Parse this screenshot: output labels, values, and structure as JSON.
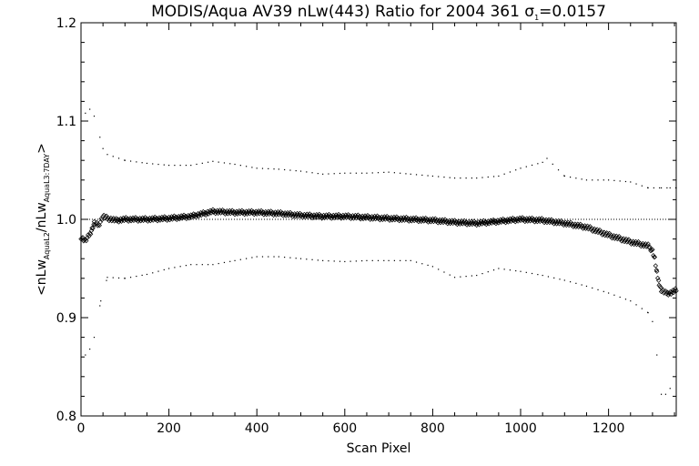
{
  "chart_data": {
    "type": "scatter",
    "title": "MODIS/Aqua AV39 nLw(443) Ratio for 2004 361 σ",
    "title_sigma_subscript": "1",
    "title_sigma_value": "=0.0157",
    "xlabel": "Scan Pixel",
    "ylabel_parts": {
      "open": "<",
      "num": "nLw",
      "num_sub": "AquaL2",
      "slash": "/",
      "den": "nLw",
      "den_sub": "AquaL3:7DAY",
      "close": ">"
    },
    "xlim": [
      0,
      1354
    ],
    "ylim": [
      0.8,
      1.2
    ],
    "x_ticks": [
      0,
      200,
      400,
      600,
      800,
      1000,
      1200
    ],
    "y_ticks": [
      0.8,
      0.9,
      1.0,
      1.1,
      1.2
    ],
    "y_tick_labels": [
      "0.8",
      "0.9",
      "1.0",
      "1.1",
      "1.2"
    ],
    "reference_line": 1.0,
    "grid": false,
    "series": [
      {
        "role": "mean ratio",
        "marker": "diamond",
        "points": [
          [
            0,
            0.982
          ],
          [
            10,
            0.978
          ],
          [
            20,
            0.985
          ],
          [
            25,
            0.99
          ],
          [
            30,
            0.996
          ],
          [
            40,
            0.994
          ],
          [
            50,
            1.003
          ],
          [
            60,
            1.001
          ],
          [
            80,
            0.999
          ],
          [
            100,
            1.0
          ],
          [
            120,
            1.0
          ],
          [
            150,
            1.0
          ],
          [
            200,
            1.001
          ],
          [
            250,
            1.003
          ],
          [
            300,
            1.008
          ],
          [
            350,
            1.007
          ],
          [
            400,
            1.007
          ],
          [
            450,
            1.006
          ],
          [
            500,
            1.004
          ],
          [
            550,
            1.003
          ],
          [
            600,
            1.003
          ],
          [
            650,
            1.002
          ],
          [
            700,
            1.001
          ],
          [
            750,
            1.0
          ],
          [
            800,
            0.999
          ],
          [
            850,
            0.997
          ],
          [
            900,
            0.996
          ],
          [
            950,
            0.998
          ],
          [
            1000,
            1.0
          ],
          [
            1050,
            0.999
          ],
          [
            1100,
            0.996
          ],
          [
            1150,
            0.992
          ],
          [
            1200,
            0.984
          ],
          [
            1250,
            0.977
          ],
          [
            1290,
            0.973
          ],
          [
            1300,
            0.968
          ],
          [
            1305,
            0.96
          ],
          [
            1310,
            0.945
          ],
          [
            1315,
            0.935
          ],
          [
            1320,
            0.928
          ],
          [
            1330,
            0.925
          ],
          [
            1340,
            0.925
          ],
          [
            1354,
            0.928
          ]
        ]
      },
      {
        "role": "upper band",
        "marker": "dot",
        "points": [
          [
            10,
            1.108
          ],
          [
            20,
            1.112
          ],
          [
            30,
            1.105
          ],
          [
            50,
            1.072
          ],
          [
            60,
            1.066
          ],
          [
            100,
            1.06
          ],
          [
            150,
            1.057
          ],
          [
            200,
            1.055
          ],
          [
            250,
            1.055
          ],
          [
            300,
            1.059
          ],
          [
            350,
            1.056
          ],
          [
            400,
            1.052
          ],
          [
            450,
            1.051
          ],
          [
            500,
            1.049
          ],
          [
            550,
            1.046
          ],
          [
            600,
            1.047
          ],
          [
            650,
            1.047
          ],
          [
            700,
            1.048
          ],
          [
            750,
            1.046
          ],
          [
            800,
            1.044
          ],
          [
            850,
            1.042
          ],
          [
            900,
            1.042
          ],
          [
            950,
            1.044
          ],
          [
            1000,
            1.052
          ],
          [
            1050,
            1.058
          ],
          [
            1060,
            1.062
          ],
          [
            1100,
            1.044
          ],
          [
            1150,
            1.04
          ],
          [
            1200,
            1.04
          ],
          [
            1250,
            1.038
          ],
          [
            1290,
            1.032
          ],
          [
            1320,
            1.032
          ],
          [
            1340,
            1.032
          ],
          [
            1354,
            1.032
          ]
        ]
      },
      {
        "role": "lower band",
        "marker": "dot",
        "points": [
          [
            10,
            0.862
          ],
          [
            20,
            0.868
          ],
          [
            30,
            0.88
          ],
          [
            45,
            0.917
          ],
          [
            60,
            0.941
          ],
          [
            100,
            0.94
          ],
          [
            150,
            0.944
          ],
          [
            200,
            0.95
          ],
          [
            250,
            0.954
          ],
          [
            300,
            0.954
          ],
          [
            350,
            0.958
          ],
          [
            400,
            0.962
          ],
          [
            450,
            0.962
          ],
          [
            500,
            0.96
          ],
          [
            550,
            0.958
          ],
          [
            600,
            0.957
          ],
          [
            650,
            0.958
          ],
          [
            700,
            0.958
          ],
          [
            750,
            0.958
          ],
          [
            800,
            0.952
          ],
          [
            850,
            0.941
          ],
          [
            900,
            0.943
          ],
          [
            950,
            0.95
          ],
          [
            1000,
            0.947
          ],
          [
            1050,
            0.943
          ],
          [
            1100,
            0.938
          ],
          [
            1150,
            0.932
          ],
          [
            1200,
            0.925
          ],
          [
            1250,
            0.917
          ],
          [
            1290,
            0.905
          ],
          [
            1300,
            0.896
          ],
          [
            1310,
            0.862
          ],
          [
            1320,
            0.822
          ],
          [
            1330,
            0.822
          ],
          [
            1340,
            0.828
          ]
        ]
      }
    ]
  }
}
